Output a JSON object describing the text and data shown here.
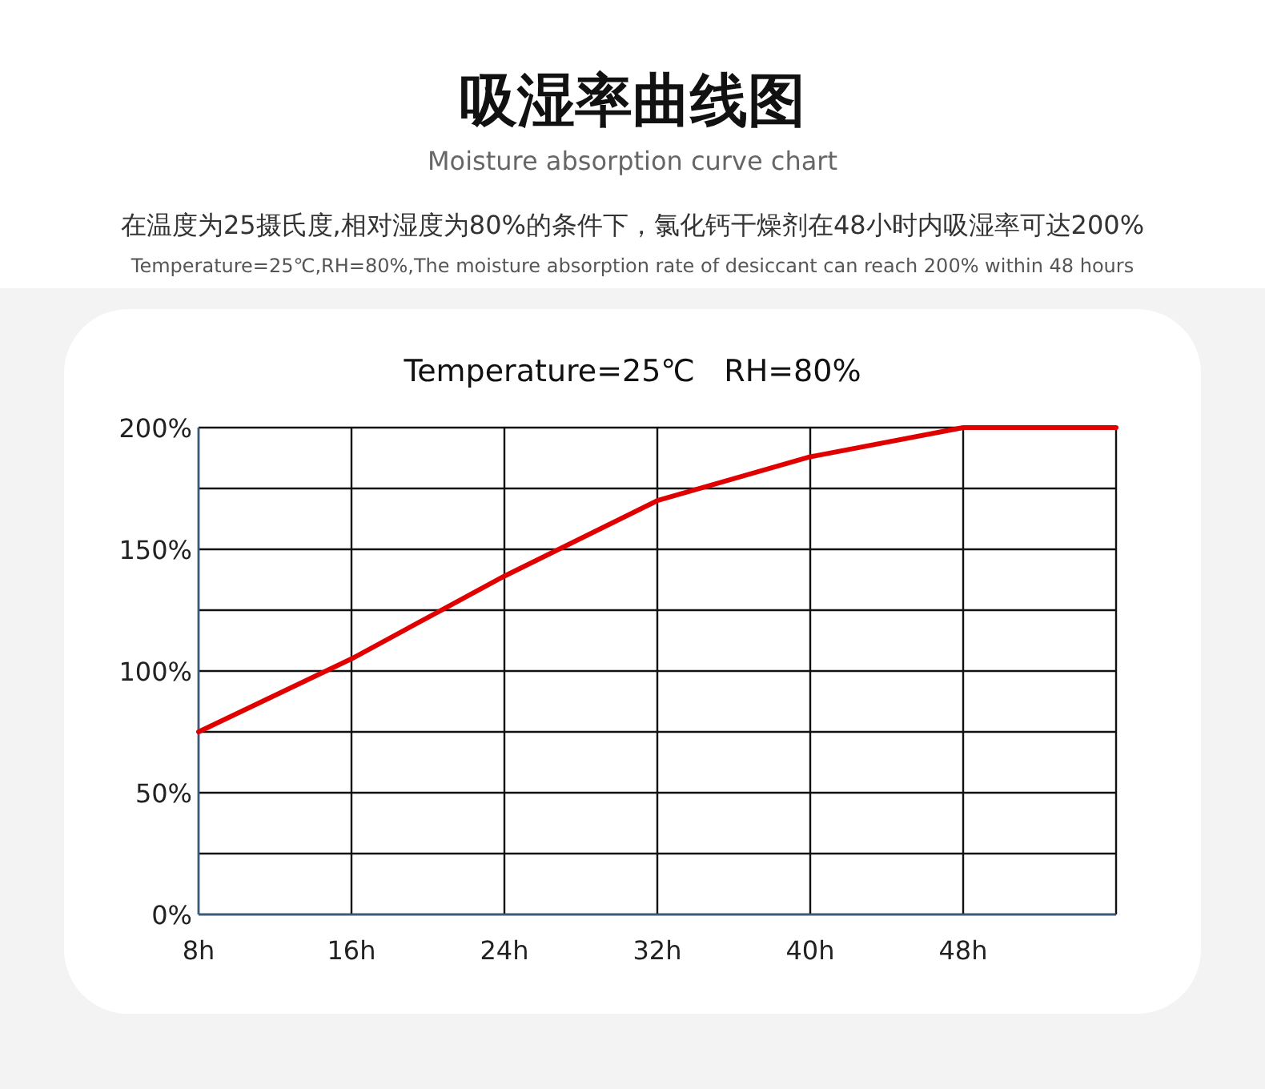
{
  "chart_data": {
    "type": "line",
    "title": "吸湿率曲线图",
    "subtitle": "Moisture absorption curve chart",
    "annotations": [
      "在温度为25摄氏度,相对湿度为80%的条件下，氯化钙干燥剂在48小时内吸湿率可达200%",
      "Temperature=25℃,RH=80%,The moisture absorption rate of desiccant can reach 200% within 48 hours",
      "Temperature=25℃   RH=80%"
    ],
    "categories": [
      "8h",
      "16h",
      "24h",
      "32h",
      "40h",
      "48h",
      null
    ],
    "series": [
      {
        "color": "#e10000",
        "values": [
          75,
          105,
          139,
          170,
          188,
          200,
          200
        ]
      }
    ],
    "ylim": [
      0,
      200
    ],
    "yticks": [
      {
        "value": 0,
        "label": "0%"
      },
      {
        "value": 25,
        "label": null
      },
      {
        "value": 50,
        "label": "50%"
      },
      {
        "value": 75,
        "label": null
      },
      {
        "value": 100,
        "label": "100%"
      },
      {
        "value": 125,
        "label": null
      },
      {
        "value": 150,
        "label": "150%"
      },
      {
        "value": 175,
        "label": null
      },
      {
        "value": 200,
        "label": "200%"
      }
    ],
    "grid": true,
    "marker": "none",
    "line_style": "solid"
  }
}
